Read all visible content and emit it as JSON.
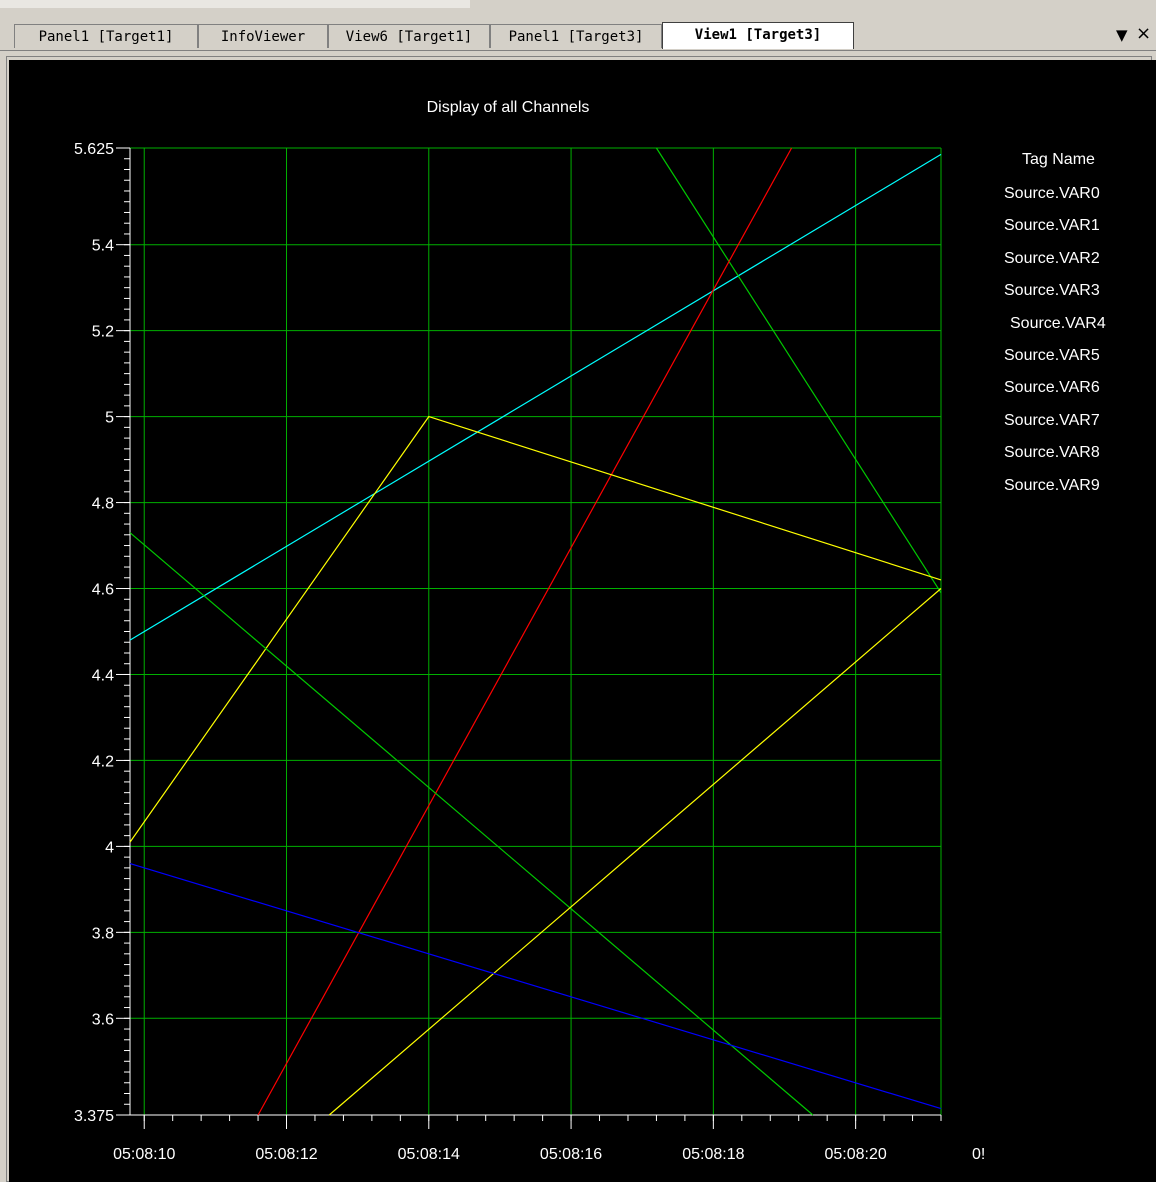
{
  "tabs": [
    {
      "label": "Panel1 [Target1]",
      "active": false
    },
    {
      "label": "InfoViewer",
      "active": false
    },
    {
      "label": "View6 [Target1]",
      "active": false
    },
    {
      "label": "Panel1 [Target3]",
      "active": false
    },
    {
      "label": "View1 [Target3]",
      "active": true
    }
  ],
  "window_controls": {
    "menu_icon": "▼",
    "close_icon": "×"
  },
  "colors": {
    "background": "#000000",
    "grid": "#00b000",
    "text": "#ffffff"
  },
  "legend": {
    "title": "Tag Name",
    "items": [
      "Source.VAR0",
      "Source.VAR1",
      "Source.VAR2",
      "Source.VAR3",
      "Source.VAR4",
      "Source.VAR5",
      "Source.VAR6",
      "Source.VAR7",
      "Source.VAR8",
      "Source.VAR9"
    ]
  },
  "chart_data": {
    "type": "line",
    "title": "Display of all Channels",
    "xlabel": "",
    "ylabel": "",
    "ylim": [
      3.375,
      5.625
    ],
    "xlim": [
      "05:08:09.8",
      "05:08:21.2"
    ],
    "y_ticks": [
      "3.375",
      "3.6",
      "3.8",
      "4",
      "4.2",
      "4.4",
      "4.6",
      "4.8",
      "5",
      "5.2",
      "5.4",
      "5.625"
    ],
    "x_ticks": [
      "05:08:10",
      "05:08:12",
      "05:08:14",
      "05:08:16",
      "05:08:18",
      "05:08:20"
    ],
    "x_tick_partial": "0!",
    "grid": true,
    "series": [
      {
        "color": "#00ffff",
        "x": [
          "05:08:09.8",
          "05:08:21.2"
        ],
        "y": [
          4.48,
          5.61
        ]
      },
      {
        "color": "#00c800",
        "x": [
          "05:08:17.2",
          "05:08:21.2"
        ],
        "y": [
          5.625,
          4.59
        ]
      },
      {
        "color": "#ff0000",
        "x": [
          "05:08:11.6",
          "05:08:19.1"
        ],
        "y": [
          3.375,
          5.625
        ]
      },
      {
        "color": "#ffff00",
        "x": [
          "05:08:09.8",
          "05:08:14",
          "05:08:21.2"
        ],
        "y": [
          4.01,
          5.0,
          4.62
        ]
      },
      {
        "color": "#00c800",
        "x": [
          "05:08:09.8",
          "05:08:19.4"
        ],
        "y": [
          4.73,
          3.375
        ]
      },
      {
        "color": "#ffff00",
        "x": [
          "05:08:12.6",
          "05:08:21.2"
        ],
        "y": [
          3.375,
          4.6
        ]
      },
      {
        "color": "#0000ff",
        "x": [
          "05:08:09.8",
          "05:08:21.2"
        ],
        "y": [
          3.96,
          3.39
        ]
      }
    ]
  }
}
